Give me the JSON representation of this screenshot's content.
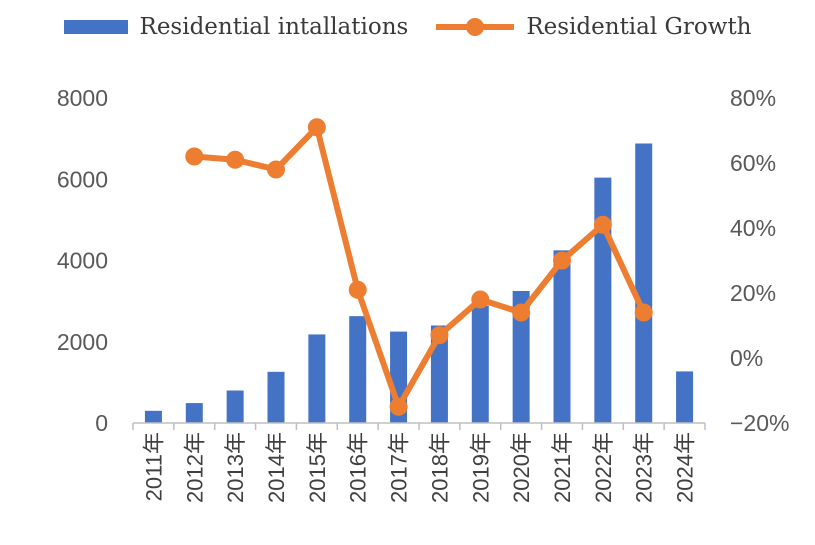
{
  "chart_data": {
    "type": "bar",
    "categories": [
      "2011年",
      "2012年",
      "2013年",
      "2014年",
      "2015年",
      "2016年",
      "2017年",
      "2018年",
      "2019年",
      "2020年",
      "2021年",
      "2022年",
      "2023年",
      "2024年"
    ],
    "series": [
      {
        "name": "Residential intallations",
        "type": "bar",
        "axis": "left",
        "color": "#4472C4",
        "values": [
          300,
          490,
          800,
          1260,
          2180,
          2630,
          2250,
          2400,
          2890,
          3250,
          4250,
          6040,
          6880,
          1270
        ]
      },
      {
        "name": "Residential Growth",
        "type": "line",
        "axis": "right",
        "color": "#ED7D31",
        "values": [
          null,
          62,
          61,
          58,
          71,
          21,
          -15,
          7,
          18,
          14,
          30,
          41,
          14,
          null
        ]
      }
    ],
    "y_left": {
      "min": 0,
      "max": 8000,
      "ticks": [
        "0",
        "2000",
        "4000",
        "6000",
        "8000"
      ]
    },
    "y_right": {
      "min": -20,
      "max": 80,
      "ticks": [
        "−20%",
        "0%",
        "20%",
        "40%",
        "60%",
        "80%"
      ]
    },
    "legend_position": "top-center",
    "grid": false
  }
}
